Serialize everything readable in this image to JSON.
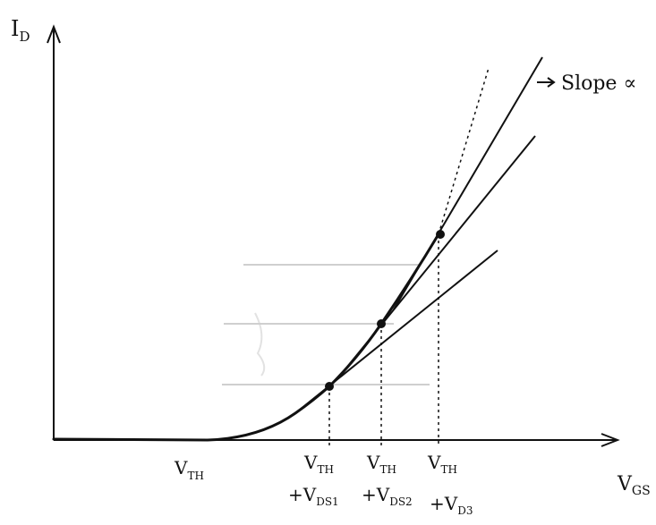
{
  "labels": {
    "y_axis": "I",
    "y_axis_sub": "D",
    "x_axis": "V",
    "x_axis_sub": "GS",
    "slope_annotation": "Slope ∝",
    "vth": "V",
    "vth_sub": "TH"
  },
  "ticks": [
    {
      "top": "V",
      "top_sub": "TH",
      "bottom": "+V",
      "bottom_sub": "DS1"
    },
    {
      "top": "V",
      "top_sub": "TH",
      "bottom": "+V",
      "bottom_sub": "DS2"
    },
    {
      "top": "V",
      "top_sub": "TH",
      "bottom": "+V",
      "bottom_sub": "D3"
    }
  ]
}
